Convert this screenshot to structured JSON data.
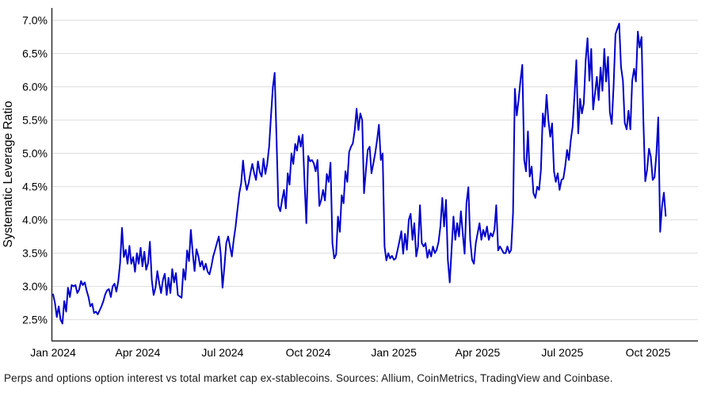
{
  "caption": {
    "text": "Perps and options option interest vs total market cap ex-stablecoins. Sources: Allium, CoinMetrics, TradingView and Coinbase."
  },
  "chart_data": {
    "type": "line",
    "title": "",
    "xlabel": "",
    "ylabel": "Systematic Leverage Ratio",
    "grid": "horizontal-only",
    "legend": "none",
    "line_color": "#0000CC",
    "grid_color": "#DDDDDD",
    "axis_color": "#262626",
    "text_color": "#000000",
    "background_color": "#FFFFFF",
    "ylim": [
      2.2,
      7.2
    ],
    "y_unit": "%",
    "x_range": [
      "2024-01-01",
      "2025-10-20"
    ],
    "yticks": [
      {
        "label": "7.0%",
        "value": 7.0
      },
      {
        "label": "6.5%",
        "value": 6.5
      },
      {
        "label": "6.0%",
        "value": 6.0
      },
      {
        "label": "5.5%",
        "value": 5.5
      },
      {
        "label": "5.0%",
        "value": 5.0
      },
      {
        "label": "4.5%",
        "value": 4.5
      },
      {
        "label": "4.0%",
        "value": 4.0
      },
      {
        "label": "3.5%",
        "value": 3.5
      },
      {
        "label": "3.0%",
        "value": 3.0
      },
      {
        "label": "2.5%",
        "value": 2.5
      }
    ],
    "xticks": [
      {
        "label": "Jan 2024",
        "day": 0
      },
      {
        "label": "Apr 2024",
        "day": 91
      },
      {
        "label": "Jul 2024",
        "day": 182
      },
      {
        "label": "Oct 2024",
        "day": 274
      },
      {
        "label": "Jan 2025",
        "day": 366
      },
      {
        "label": "Apr 2025",
        "day": 456
      },
      {
        "label": "Jul 2025",
        "day": 547
      },
      {
        "label": "Oct 2025",
        "day": 639
      }
    ],
    "series": [
      {
        "name": "Systematic Leverage Ratio",
        "start_date": "2024-01-01",
        "step_days": 2,
        "values": [
          2.88,
          2.75,
          2.54,
          2.7,
          2.5,
          2.44,
          2.78,
          2.62,
          2.98,
          2.84,
          3.02,
          3.0,
          3.02,
          2.9,
          2.95,
          3.08,
          3.02,
          3.06,
          2.94,
          2.84,
          2.7,
          2.74,
          2.6,
          2.62,
          2.58,
          2.64,
          2.7,
          2.78,
          2.88,
          2.94,
          2.96,
          2.84,
          3.0,
          3.04,
          2.92,
          3.08,
          3.35,
          3.88,
          3.44,
          3.55,
          3.34,
          3.61,
          3.34,
          3.44,
          3.22,
          3.5,
          3.34,
          3.58,
          3.3,
          3.52,
          3.25,
          3.35,
          3.67,
          3.1,
          2.87,
          2.98,
          3.23,
          3.05,
          2.9,
          3.1,
          3.19,
          2.87,
          3.13,
          2.9,
          3.26,
          3.06,
          3.2,
          2.87,
          2.85,
          2.83,
          3.26,
          3.1,
          3.54,
          3.38,
          3.85,
          3.5,
          3.23,
          3.56,
          3.46,
          3.3,
          3.38,
          3.25,
          3.34,
          3.22,
          3.18,
          3.3,
          3.45,
          3.55,
          3.65,
          3.75,
          3.5,
          2.98,
          3.3,
          3.65,
          3.75,
          3.6,
          3.45,
          3.7,
          3.9,
          4.15,
          4.4,
          4.55,
          4.89,
          4.61,
          4.45,
          4.55,
          4.71,
          4.84,
          4.7,
          4.6,
          4.88,
          4.72,
          4.65,
          4.92,
          4.69,
          4.84,
          5.1,
          5.55,
          5.99,
          6.21,
          5.2,
          4.21,
          4.13,
          4.3,
          4.45,
          4.17,
          4.7,
          4.53,
          5.0,
          4.84,
          5.14,
          5.04,
          5.26,
          5.1,
          5.28,
          4.6,
          3.95,
          4.96,
          4.88,
          4.9,
          4.85,
          4.73,
          4.9,
          4.21,
          4.3,
          4.45,
          4.29,
          4.69,
          4.57,
          4.86,
          3.65,
          3.42,
          3.48,
          4.05,
          3.82,
          4.37,
          4.25,
          4.73,
          4.57,
          5.02,
          5.1,
          5.15,
          5.35,
          5.67,
          5.35,
          5.6,
          5.5,
          4.4,
          4.75,
          5.05,
          5.1,
          4.7,
          4.85,
          5.0,
          5.2,
          5.43,
          4.9,
          5.0,
          3.6,
          3.39,
          3.5,
          3.42,
          3.46,
          3.4,
          3.42,
          3.55,
          3.68,
          3.83,
          3.49,
          3.79,
          3.55,
          4.0,
          4.09,
          3.7,
          3.95,
          3.45,
          3.6,
          4.22,
          3.65,
          3.6,
          3.65,
          3.43,
          3.55,
          3.45,
          3.6,
          3.5,
          3.55,
          3.67,
          3.9,
          4.33,
          3.9,
          4.3,
          3.4,
          3.06,
          3.55,
          4.05,
          3.7,
          3.95,
          3.75,
          4.13,
          3.8,
          3.49,
          4.25,
          4.49,
          3.7,
          3.4,
          3.34,
          3.65,
          3.8,
          3.95,
          3.7,
          3.85,
          3.75,
          3.9,
          3.7,
          3.8,
          3.75,
          3.85,
          4.22,
          3.54,
          3.6,
          3.55,
          3.5,
          3.5,
          3.6,
          3.5,
          3.55,
          4.1,
          5.97,
          5.57,
          5.8,
          6.1,
          6.33,
          4.9,
          4.73,
          5.33,
          4.65,
          4.8,
          4.4,
          4.33,
          4.5,
          4.45,
          4.75,
          5.6,
          5.4,
          5.88,
          5.5,
          5.25,
          5.45,
          4.73,
          4.57,
          4.7,
          4.45,
          4.6,
          4.62,
          4.8,
          5.05,
          4.9,
          5.2,
          5.4,
          5.88,
          6.4,
          5.3,
          5.82,
          5.6,
          5.75,
          6.4,
          6.73,
          6.09,
          6.57,
          5.66,
          5.9,
          6.15,
          5.8,
          6.29,
          5.94,
          6.57,
          6.08,
          6.45,
          5.62,
          5.44,
          6.0,
          6.79,
          6.87,
          6.95,
          6.3,
          6.09,
          5.46,
          5.36,
          5.64,
          5.36,
          6.09,
          6.27,
          6.08,
          6.83,
          6.59,
          6.75,
          5.5,
          4.58,
          4.75,
          5.07,
          4.95,
          4.6,
          4.64,
          5.0,
          5.54,
          3.82,
          4.2,
          4.41,
          4.06
        ]
      }
    ]
  }
}
